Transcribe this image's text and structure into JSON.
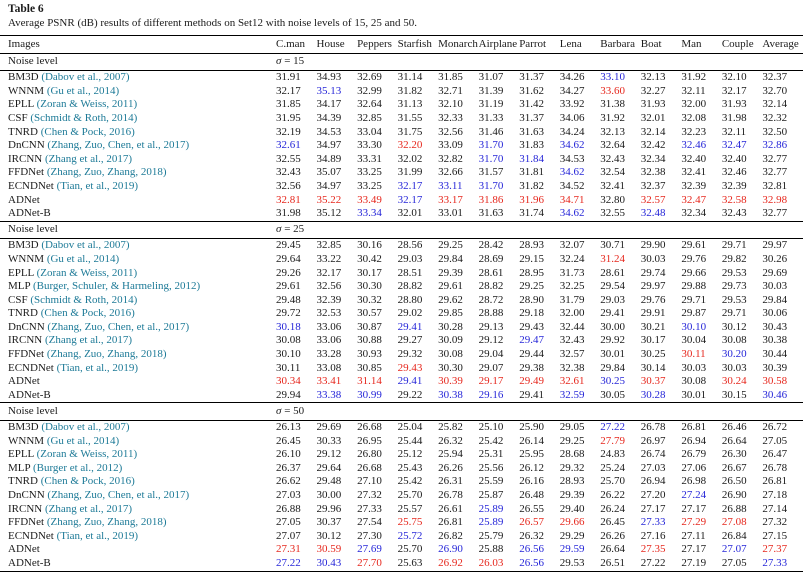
{
  "colors": {
    "best": "#e6271d",
    "second": "#2626d8",
    "citation": "#1d7a97"
  },
  "table": {
    "label": "Table 6",
    "caption": "Average PSNR (dB) results of different methods on Set12 with noise levels of 15, 25 and 50.",
    "noise_label": "Noise level",
    "mark_legend": {
      "0": "normal",
      "1": "second-best-blue",
      "2": "best-red"
    },
    "columns": [
      "Images",
      "C.man",
      "House",
      "Peppers",
      "Starfish",
      "Monarch",
      "Airplane",
      "Parrot",
      "Lena",
      "Barbara",
      "Boat",
      "Man",
      "Couple",
      "Average"
    ],
    "sections": [
      {
        "sigma_sym": "σ",
        "sigma_rest": "= 15",
        "rows": [
          {
            "method": "BM3D",
            "cite": "(Dabov et al., 2007)",
            "values": [
              "31.91",
              "34.93",
              "32.69",
              "31.14",
              "31.85",
              "31.07",
              "31.37",
              "34.26",
              "33.10",
              "32.13",
              "31.92",
              "32.10",
              "32.37"
            ],
            "marks": "0000000010000"
          },
          {
            "method": "WNNM",
            "cite": "(Gu et al., 2014)",
            "values": [
              "32.17",
              "35.13",
              "32.99",
              "31.82",
              "32.71",
              "31.39",
              "31.62",
              "34.27",
              "33.60",
              "32.27",
              "32.11",
              "32.17",
              "32.70"
            ],
            "marks": "0100000020000"
          },
          {
            "method": "EPLL",
            "cite": "(Zoran & Weiss, 2011)",
            "values": [
              "31.85",
              "34.17",
              "32.64",
              "31.13",
              "32.10",
              "31.19",
              "31.42",
              "33.92",
              "31.38",
              "31.93",
              "32.00",
              "31.93",
              "32.14"
            ],
            "marks": "0000000000000"
          },
          {
            "method": "CSF",
            "cite": "(Schmidt & Roth, 2014)",
            "values": [
              "31.95",
              "34.39",
              "32.85",
              "31.55",
              "32.33",
              "31.33",
              "31.37",
              "34.06",
              "31.92",
              "32.01",
              "32.08",
              "31.98",
              "32.32"
            ],
            "marks": "0000000000000"
          },
          {
            "method": "TNRD",
            "cite": "(Chen & Pock, 2016)",
            "values": [
              "32.19",
              "34.53",
              "33.04",
              "31.75",
              "32.56",
              "31.46",
              "31.63",
              "34.24",
              "32.13",
              "32.14",
              "32.23",
              "32.11",
              "32.50"
            ],
            "marks": "0000000000000"
          },
          {
            "method": "DnCNN",
            "cite": "(Zhang, Zuo, Chen, et al., 2017)",
            "values": [
              "32.61",
              "34.97",
              "33.30",
              "32.20",
              "33.09",
              "31.70",
              "31.83",
              "34.62",
              "32.64",
              "32.42",
              "32.46",
              "32.47",
              "32.86"
            ],
            "marks": "1002010100111"
          },
          {
            "method": "IRCNN",
            "cite": "(Zhang et al., 2017)",
            "values": [
              "32.55",
              "34.89",
              "33.31",
              "32.02",
              "32.82",
              "31.70",
              "31.84",
              "34.53",
              "32.43",
              "32.34",
              "32.40",
              "32.40",
              "32.77"
            ],
            "marks": "0000011000000"
          },
          {
            "method": "FFDNet",
            "cite": "(Zhang, Zuo, Zhang, 2018)",
            "values": [
              "32.43",
              "35.07",
              "33.25",
              "31.99",
              "32.66",
              "31.57",
              "31.81",
              "34.62",
              "32.54",
              "32.38",
              "32.41",
              "32.46",
              "32.77"
            ],
            "marks": "0000000100000"
          },
          {
            "method": "ECNDNet",
            "cite": "(Tian, et al., 2019)",
            "values": [
              "32.56",
              "34.97",
              "33.25",
              "32.17",
              "33.11",
              "31.70",
              "31.82",
              "34.52",
              "32.41",
              "32.37",
              "32.39",
              "32.39",
              "32.81"
            ],
            "marks": "0001110000000"
          },
          {
            "method": "ADNet",
            "values": [
              "32.81",
              "35.22",
              "33.49",
              "32.17",
              "33.17",
              "31.86",
              "31.96",
              "34.71",
              "32.80",
              "32.57",
              "32.47",
              "32.58",
              "32.98"
            ],
            "marks": "2221222202222"
          },
          {
            "method": "ADNet-B",
            "values": [
              "31.98",
              "35.12",
              "33.34",
              "32.01",
              "33.01",
              "31.63",
              "31.74",
              "34.62",
              "32.55",
              "32.48",
              "32.34",
              "32.43",
              "32.77"
            ],
            "marks": "0010000101000"
          }
        ]
      },
      {
        "sigma_sym": "σ",
        "sigma_rest": "= 25",
        "rows": [
          {
            "method": "BM3D",
            "cite": "(Dabov et al., 2007)",
            "values": [
              "29.45",
              "32.85",
              "30.16",
              "28.56",
              "29.25",
              "28.42",
              "28.93",
              "32.07",
              "30.71",
              "29.90",
              "29.61",
              "29.71",
              "29.97"
            ],
            "marks": "0000000000000"
          },
          {
            "method": "WNNM",
            "cite": "(Gu et al., 2014)",
            "values": [
              "29.64",
              "33.22",
              "30.42",
              "29.03",
              "29.84",
              "28.69",
              "29.15",
              "32.24",
              "31.24",
              "30.03",
              "29.76",
              "29.82",
              "30.26"
            ],
            "marks": "0000000020000"
          },
          {
            "method": "EPLL",
            "cite": "(Zoran & Weiss, 2011)",
            "values": [
              "29.26",
              "32.17",
              "30.17",
              "28.51",
              "29.39",
              "28.61",
              "28.95",
              "31.73",
              "28.61",
              "29.74",
              "29.66",
              "29.53",
              "29.69"
            ],
            "marks": "0000000000000"
          },
          {
            "method": "MLP",
            "cite": "(Burger, Schuler, & Harmeling, 2012)",
            "values": [
              "29.61",
              "32.56",
              "30.30",
              "28.82",
              "29.61",
              "28.82",
              "29.25",
              "32.25",
              "29.54",
              "29.97",
              "29.88",
              "29.73",
              "30.03"
            ],
            "marks": "0000000000000"
          },
          {
            "method": "CSF",
            "cite": "(Schmidt & Roth, 2014)",
            "values": [
              "29.48",
              "32.39",
              "30.32",
              "28.80",
              "29.62",
              "28.72",
              "28.90",
              "31.79",
              "29.03",
              "29.76",
              "29.71",
              "29.53",
              "29.84"
            ],
            "marks": "0000000000000"
          },
          {
            "method": "TNRD",
            "cite": "(Chen & Pock, 2016)",
            "values": [
              "29.72",
              "32.53",
              "30.57",
              "29.02",
              "29.85",
              "28.88",
              "29.18",
              "32.00",
              "29.41",
              "29.91",
              "29.87",
              "29.71",
              "30.06"
            ],
            "marks": "0000000000000"
          },
          {
            "method": "DnCNN",
            "cite": "(Zhang, Zuo, Chen, et al., 2017)",
            "values": [
              "30.18",
              "33.06",
              "30.87",
              "29.41",
              "30.28",
              "29.13",
              "29.43",
              "32.44",
              "30.00",
              "30.21",
              "30.10",
              "30.12",
              "30.43"
            ],
            "marks": "1001000000100"
          },
          {
            "method": "IRCNN",
            "cite": "(Zhang et al., 2017)",
            "values": [
              "30.08",
              "33.06",
              "30.88",
              "29.27",
              "30.09",
              "29.12",
              "29.47",
              "32.43",
              "29.92",
              "30.17",
              "30.04",
              "30.08",
              "30.38"
            ],
            "marks": "0000001000000"
          },
          {
            "method": "FFDNet",
            "cite": "(Zhang, Zuo, Zhang, 2018)",
            "values": [
              "30.10",
              "33.28",
              "30.93",
              "29.32",
              "30.08",
              "29.04",
              "29.44",
              "32.57",
              "30.01",
              "30.25",
              "30.11",
              "30.20",
              "30.44"
            ],
            "marks": "0000000000210"
          },
          {
            "method": "ECNDNet",
            "cite": "(Tian, et al., 2019)",
            "values": [
              "30.11",
              "33.08",
              "30.85",
              "29.43",
              "30.30",
              "29.07",
              "29.38",
              "32.38",
              "29.84",
              "30.14",
              "30.03",
              "30.03",
              "30.39"
            ],
            "marks": "0002000000000"
          },
          {
            "method": "ADNet",
            "values": [
              "30.34",
              "33.41",
              "31.14",
              "29.41",
              "30.39",
              "29.17",
              "29.49",
              "32.61",
              "30.25",
              "30.37",
              "30.08",
              "30.24",
              "30.58"
            ],
            "marks": "2221222212022"
          },
          {
            "method": "ADNet-B",
            "values": [
              "29.94",
              "33.38",
              "30.99",
              "29.22",
              "30.38",
              "29.16",
              "29.41",
              "32.59",
              "30.05",
              "30.28",
              "30.01",
              "30.15",
              "30.46"
            ],
            "marks": "0110110101001"
          }
        ]
      },
      {
        "sigma_sym": "σ",
        "sigma_rest": "= 50",
        "rows": [
          {
            "method": "BM3D",
            "cite": "(Dabov et al., 2007)",
            "values": [
              "26.13",
              "29.69",
              "26.68",
              "25.04",
              "25.82",
              "25.10",
              "25.90",
              "29.05",
              "27.22",
              "26.78",
              "26.81",
              "26.46",
              "26.72"
            ],
            "marks": "0000000010000"
          },
          {
            "method": "WNNM",
            "cite": "(Gu et al., 2014)",
            "values": [
              "26.45",
              "30.33",
              "26.95",
              "25.44",
              "26.32",
              "25.42",
              "26.14",
              "29.25",
              "27.79",
              "26.97",
              "26.94",
              "26.64",
              "27.05"
            ],
            "marks": "0000000020000"
          },
          {
            "method": "EPLL",
            "cite": "(Zoran & Weiss, 2011)",
            "values": [
              "26.10",
              "29.12",
              "26.80",
              "25.12",
              "25.94",
              "25.31",
              "25.95",
              "28.68",
              "24.83",
              "26.74",
              "26.79",
              "26.30",
              "26.47"
            ],
            "marks": "0000000000000"
          },
          {
            "method": "MLP",
            "cite": "(Burger et al., 2012)",
            "values": [
              "26.37",
              "29.64",
              "26.68",
              "25.43",
              "26.26",
              "25.56",
              "26.12",
              "29.32",
              "25.24",
              "27.03",
              "27.06",
              "26.67",
              "26.78"
            ],
            "marks": "0000000000000"
          },
          {
            "method": "TNRD",
            "cite": "(Chen & Pock, 2016)",
            "values": [
              "26.62",
              "29.48",
              "27.10",
              "25.42",
              "26.31",
              "25.59",
              "26.16",
              "28.93",
              "25.70",
              "26.94",
              "26.98",
              "26.50",
              "26.81"
            ],
            "marks": "0000000000000"
          },
          {
            "method": "DnCNN",
            "cite": "(Zhang, Zuo, Chen, et al., 2017)",
            "values": [
              "27.03",
              "30.00",
              "27.32",
              "25.70",
              "26.78",
              "25.87",
              "26.48",
              "29.39",
              "26.22",
              "27.20",
              "27.24",
              "26.90",
              "27.18"
            ],
            "marks": "0000000000100"
          },
          {
            "method": "IRCNN",
            "cite": "(Zhang et al., 2017)",
            "values": [
              "26.88",
              "29.96",
              "27.33",
              "25.57",
              "26.61",
              "25.89",
              "26.55",
              "29.40",
              "26.24",
              "27.17",
              "27.17",
              "26.88",
              "27.14"
            ],
            "marks": "0000010000000"
          },
          {
            "method": "FFDNet",
            "cite": "(Zhang, Zuo, Zhang, 2018)",
            "values": [
              "27.05",
              "30.37",
              "27.54",
              "25.75",
              "26.81",
              "25.89",
              "26.57",
              "29.66",
              "26.45",
              "27.33",
              "27.29",
              "27.08",
              "27.32"
            ],
            "marks": "0002012201220"
          },
          {
            "method": "ECNDNet",
            "cite": "(Tian, et al., 2019)",
            "values": [
              "27.07",
              "30.12",
              "27.30",
              "25.72",
              "26.82",
              "25.79",
              "26.32",
              "29.29",
              "26.26",
              "27.16",
              "27.11",
              "26.84",
              "27.15"
            ],
            "marks": "0001000000000"
          },
          {
            "method": "ADNet",
            "values": [
              "27.31",
              "30.59",
              "27.69",
              "25.70",
              "26.90",
              "25.88",
              "26.56",
              "29.59",
              "26.64",
              "27.35",
              "27.17",
              "27.07",
              "27.37"
            ],
            "marks": "2210101102012"
          },
          {
            "method": "ADNet-B",
            "values": [
              "27.22",
              "30.43",
              "27.70",
              "25.63",
              "26.92",
              "26.03",
              "26.56",
              "29.53",
              "26.51",
              "27.22",
              "27.19",
              "27.05",
              "27.33"
            ],
            "marks": "1120221000001"
          }
        ]
      }
    ]
  }
}
